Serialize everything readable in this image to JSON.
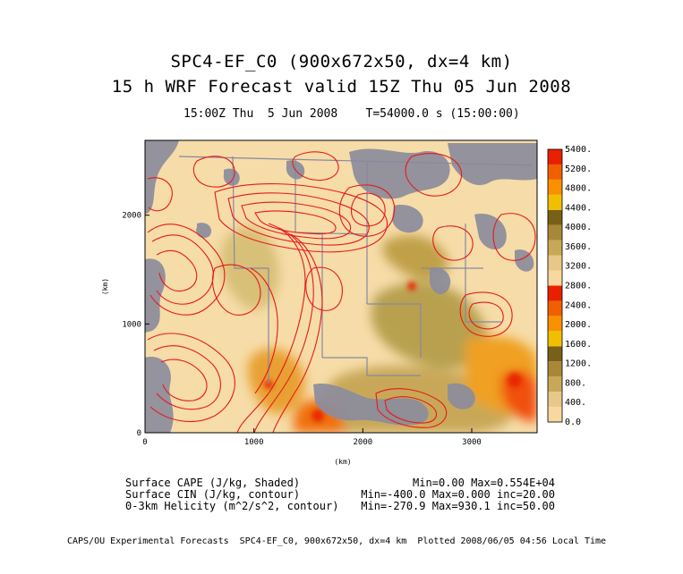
{
  "header": {
    "title_line1": "SPC4-EF_C0 (900x672x50, dx=4 km)",
    "title_line2": "15 h WRF Forecast valid 15Z Thu 05 Jun 2008",
    "subtitle": "15:00Z Thu  5 Jun 2008    T=54000.0 s (15:00:00)"
  },
  "chart_data": {
    "type": "heatmap",
    "title": "15 h WRF Forecast valid 15Z Thu 05 Jun 2008",
    "xlabel": "(km)",
    "ylabel": "(km)",
    "xlim": [
      0,
      3600
    ],
    "ylim": [
      0,
      2688
    ],
    "x_ticks": [
      0,
      1000,
      2000,
      3000
    ],
    "y_ticks": [
      0,
      1000,
      2000
    ],
    "colorbar_labels": [
      "5400.",
      "5200.",
      "4800.",
      "4400.",
      "4000.",
      "3600.",
      "3200.",
      "2800.",
      "2400.",
      "2000.",
      "1600.",
      "1200.",
      "800.",
      "400.",
      "0.0"
    ],
    "colorbar_colors": [
      "#f8d8a0",
      "#e8c888",
      "#c8a858",
      "#a88838",
      "#786018",
      "#f0c000",
      "#f89000",
      "#f06000",
      "#e82000",
      "#f8d8a0",
      "#e8c888",
      "#c8a858",
      "#a88838",
      "#786018",
      "#f0c000",
      "#f89000",
      "#f06000",
      "#e82000"
    ],
    "fields": [
      {
        "name": "Surface CAPE (J/kg, Shaded)",
        "stats": "Min=0.00 Max=0.554E+04"
      },
      {
        "name": "Surface CIN (J/kg, contour)",
        "stats": "Min=-400.0 Max=0.000 inc=20.00"
      },
      {
        "name": "0-3km Helicity (m^2/s^2, contour)",
        "stats": "Min=-270.9 Max=930.1 inc=50.00"
      }
    ]
  },
  "footer": "CAPS/OU Experimental Forecasts  SPC4-EF_C0, 900x672x50, dx=4 km  Plotted 2008/06/05 04:56 Local Time"
}
